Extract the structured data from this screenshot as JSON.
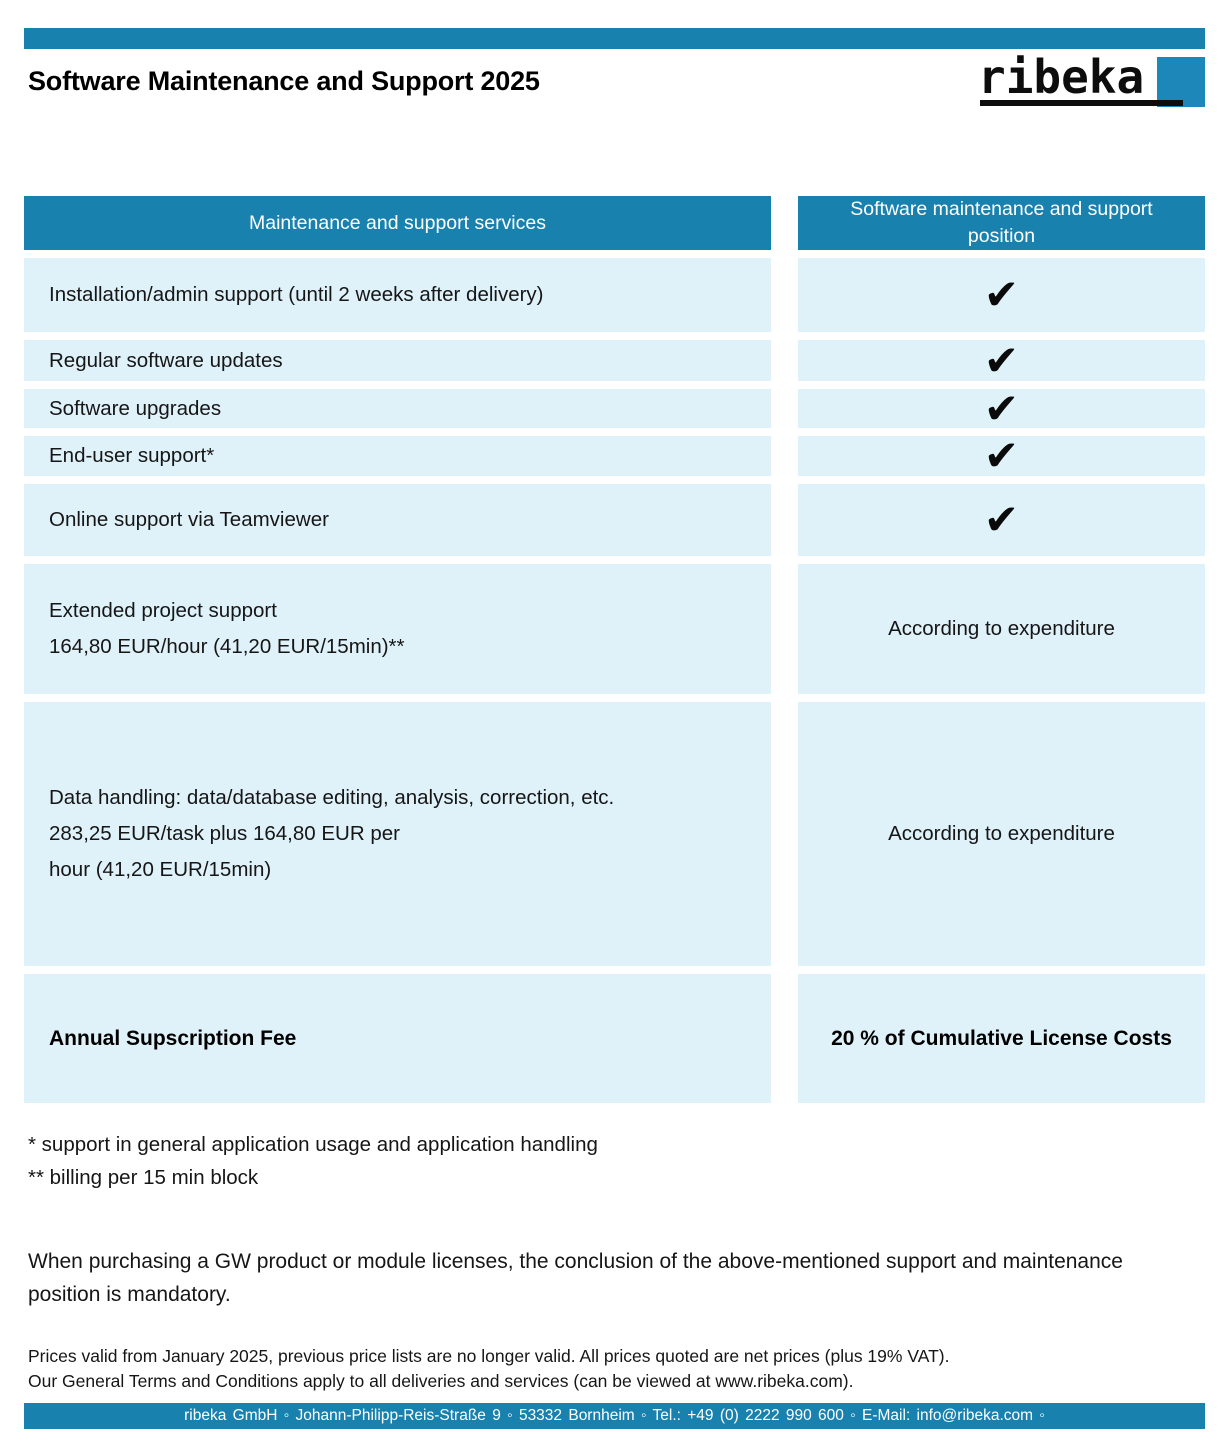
{
  "header": {
    "title": "Software Maintenance and Support 2025",
    "logo_text": "ribeka"
  },
  "table": {
    "col1_header": "Maintenance and support services",
    "col2_header": "Software maintenance and support position",
    "check_icon": "✔",
    "rows": [
      {
        "service": "Installation/admin support (until 2 weeks after delivery)",
        "position": "check"
      },
      {
        "service": "Regular software updates",
        "position": "check"
      },
      {
        "service": "Software upgrades",
        "position": "check"
      },
      {
        "service": "End-user support*",
        "position": "check"
      },
      {
        "service": "Online support via Teamviewer",
        "position": "check"
      },
      {
        "service_lines": [
          "Extended project support",
          "164,80 EUR/hour (41,20 EUR/15min)**"
        ],
        "position": "According to expenditure"
      },
      {
        "service_lines": [
          "Data handling: data/database editing, analysis, correction, etc.",
          "283,25 EUR/task plus 164,80 EUR per",
          "hour (41,20 EUR/15min)"
        ],
        "position": "According to expenditure"
      },
      {
        "service": "Annual Supscription Fee",
        "position": "20 % of Cumulative License Costs"
      }
    ]
  },
  "footnotes": {
    "line1": "* support in general application usage and application handling",
    "line2": "** billing per 15 min block"
  },
  "note_text": "When purchasing a GW product or module licenses, the conclusion of the above-mentioned support and maintenance position is mandatory.",
  "legal": {
    "line1": "Prices valid from January 2025, previous price lists are no longer valid. All prices quoted are net prices (plus 19% VAT).",
    "line2": "Our General Terms and Conditions apply to all deliveries and services (can be viewed at www.ribeka.com)."
  },
  "footer": {
    "text": "ribeka GmbH ◦ Johann-Philipp-Reis-Straße 9 ◦ 53332 Bornheim ◦ Tel.: +49 (0) 2222 990 600 ◦ E-Mail: info@ribeka.com ◦"
  },
  "colors": {
    "accent": "#1981ae",
    "row_bg": "#dff1f9",
    "logo_blue": "#1e87ba"
  }
}
